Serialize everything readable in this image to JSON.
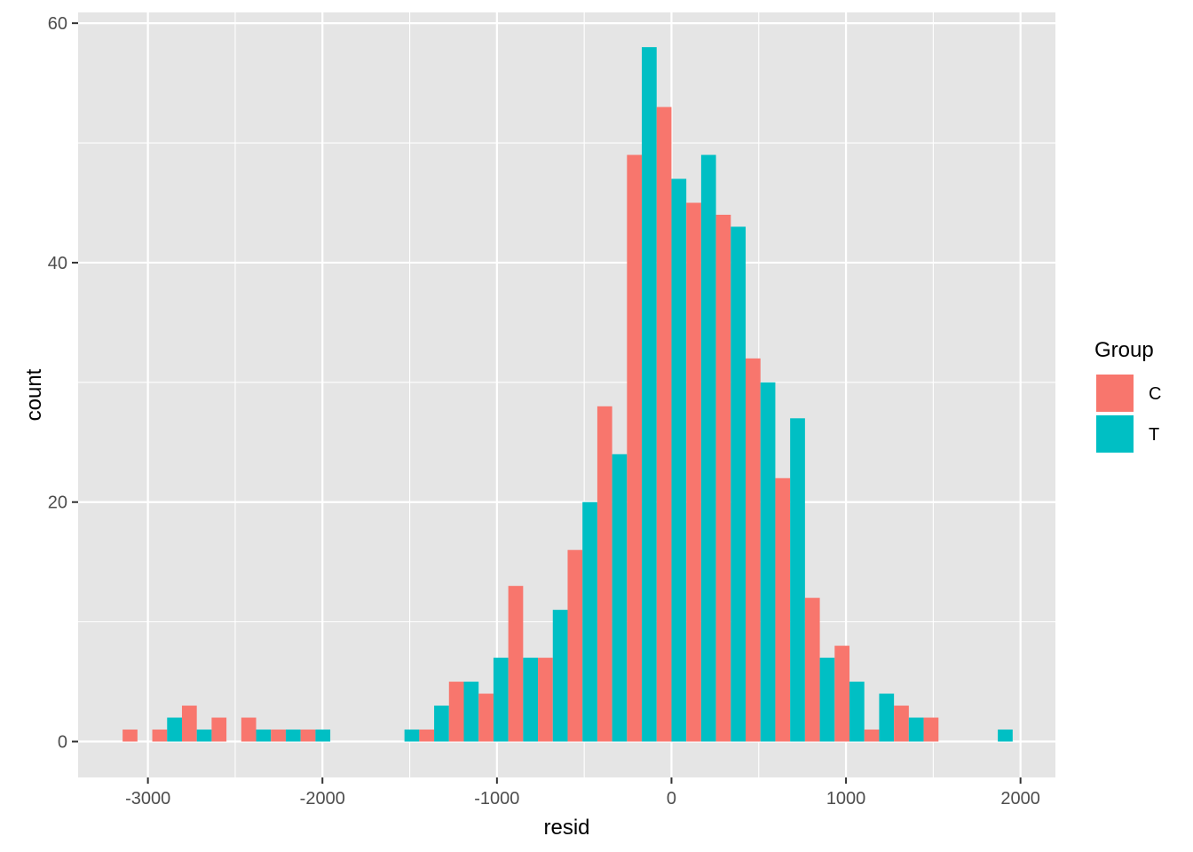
{
  "chart_data": {
    "type": "bar",
    "title": "",
    "xlabel": "resid",
    "ylabel": "count",
    "xlim": [
      -3400,
      2200
    ],
    "ylim": [
      -3,
      60.9
    ],
    "x_ticks": [
      -3000,
      -2000,
      -1000,
      0,
      1000,
      2000
    ],
    "x_tick_labels": [
      "-3000",
      "-2000",
      "-1000",
      "0",
      "1000",
      "2000"
    ],
    "y_ticks": [
      0,
      20,
      40,
      60
    ],
    "y_tick_labels": [
      "0",
      "20",
      "40",
      "60"
    ],
    "grid": true,
    "panel_background": "#e5e5e5",
    "grid_color": "#ffffff",
    "legend_placement": "right",
    "legend": {
      "title": "Group",
      "entries": [
        {
          "label": "C",
          "color": "#F8766D"
        },
        {
          "label": "T",
          "color": "#00BFC4"
        }
      ]
    },
    "bin_width": 170,
    "x": [
      -3060,
      -2890,
      -2720,
      -2550,
      -2380,
      -2210,
      -2040,
      -1870,
      -1700,
      -1530,
      -1360,
      -1190,
      -1020,
      -850,
      -680,
      -510,
      -340,
      -170,
      0,
      170,
      340,
      510,
      680,
      850,
      1020,
      1190,
      1360,
      1530,
      1700,
      1870
    ],
    "series": [
      {
        "name": "C",
        "color": "#F8766D",
        "values": [
          1,
          1,
          3,
          2,
          2,
          1,
          1,
          0,
          0,
          0,
          1,
          5,
          4,
          13,
          7,
          16,
          28,
          49,
          53,
          45,
          44,
          32,
          22,
          12,
          8,
          1,
          3,
          2,
          0,
          0
        ]
      },
      {
        "name": "T",
        "color": "#00BFC4",
        "values": [
          0,
          2,
          1,
          0,
          1,
          1,
          1,
          0,
          0,
          1,
          3,
          5,
          7,
          7,
          11,
          20,
          24,
          58,
          47,
          49,
          43,
          30,
          27,
          7,
          5,
          4,
          2,
          0,
          0,
          1
        ]
      }
    ]
  }
}
